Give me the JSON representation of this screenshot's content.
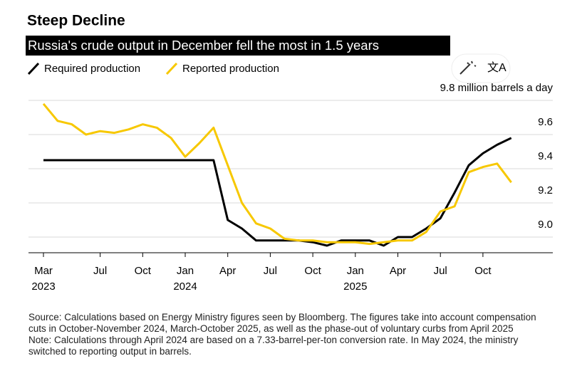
{
  "chart_data": {
    "type": "line",
    "title": "Steep Decline",
    "subtitle": "Russia's crude output in December fell the most in 1.5 years",
    "x": [
      "2023-03",
      "2023-04",
      "2023-05",
      "2023-06",
      "2023-07",
      "2023-08",
      "2023-09",
      "2023-10",
      "2023-11",
      "2023-12",
      "2024-01",
      "2024-02",
      "2024-03",
      "2024-04",
      "2024-05",
      "2024-06",
      "2024-07",
      "2024-08",
      "2024-09",
      "2024-10",
      "2024-11",
      "2024-12",
      "2025-01",
      "2025-02",
      "2025-03",
      "2025-04",
      "2025-05",
      "2025-06",
      "2025-07",
      "2025-08",
      "2025-09",
      "2025-10",
      "2025-11",
      "2025-12"
    ],
    "series": [
      {
        "name": "Required production",
        "color": "#000000",
        "values": [
          9.45,
          9.45,
          9.45,
          9.45,
          9.45,
          9.45,
          9.45,
          9.45,
          9.45,
          9.45,
          9.45,
          9.45,
          9.45,
          9.1,
          9.05,
          8.98,
          8.98,
          8.98,
          8.98,
          8.97,
          8.95,
          8.98,
          8.98,
          8.98,
          8.95,
          9.0,
          9.0,
          9.05,
          9.11,
          9.26,
          9.42,
          9.49,
          9.54,
          9.58
        ]
      },
      {
        "name": "Reported production",
        "color": "#f7c800",
        "values": [
          9.78,
          9.68,
          9.66,
          9.6,
          9.62,
          9.61,
          9.63,
          9.66,
          9.64,
          9.58,
          9.47,
          9.55,
          9.64,
          9.42,
          9.2,
          9.08,
          9.05,
          8.99,
          8.98,
          8.98,
          8.97,
          8.97,
          8.97,
          8.96,
          8.97,
          8.98,
          8.98,
          9.03,
          9.15,
          9.18,
          9.38,
          9.41,
          9.43,
          9.32
        ]
      }
    ],
    "xticks": [
      {
        "value": "2023-03",
        "label": "Mar",
        "year": "2023"
      },
      {
        "value": "2023-07",
        "label": "Jul"
      },
      {
        "value": "2023-10",
        "label": "Oct"
      },
      {
        "value": "2024-01",
        "label": "Jan",
        "year": "2024"
      },
      {
        "value": "2024-04",
        "label": "Apr"
      },
      {
        "value": "2024-07",
        "label": "Jul"
      },
      {
        "value": "2024-10",
        "label": "Oct"
      },
      {
        "value": "2025-01",
        "label": "Jan",
        "year": "2025"
      },
      {
        "value": "2025-04",
        "label": "Apr"
      },
      {
        "value": "2025-07",
        "label": "Jul"
      },
      {
        "value": "2025-10",
        "label": "Oct"
      }
    ],
    "ylim": [
      8.9,
      9.8
    ],
    "yticks": [
      {
        "value": 9.0,
        "label": "9.0"
      },
      9.2,
      9.4,
      9.6,
      {
        "value": 9.8,
        "label": "9.8 million barrels a day"
      }
    ],
    "grid": true,
    "source": "Source: Calculations based on Energy Ministry figures seen by Bloomberg. The figures take into account compensation cuts in October-November 2024, March-October 2025, as well as the phase-out of voluntary curbs from April 2025",
    "note": "Note: Calculations through April 2024 are based on a 7.33-barrel-per-ton conversion rate. In May 2024, the ministry switched to reporting output in barrels."
  }
}
